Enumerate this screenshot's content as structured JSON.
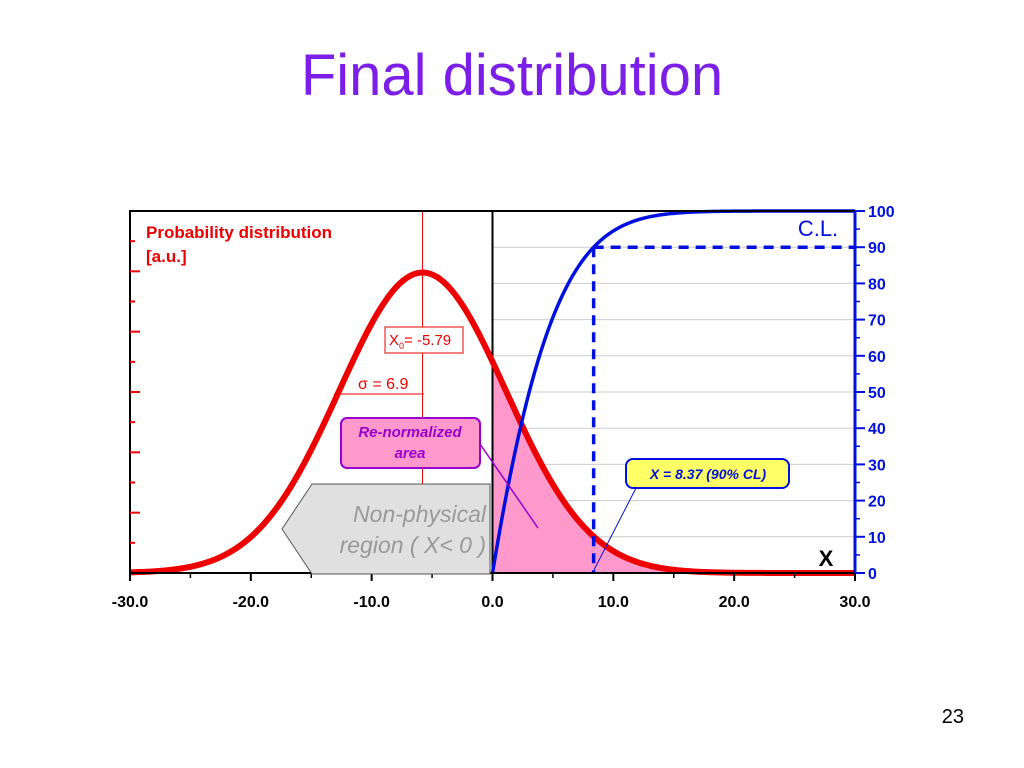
{
  "slide": {
    "title": "Final distribution",
    "page_number": "23"
  },
  "colors": {
    "title": "#7b1fe8",
    "pdf": "#ee0000",
    "cl": "#0011dd",
    "renorm_fill": "#ff99cc",
    "annotation_purple": "#9900cc",
    "nonphys_fill": "#e0e0e0",
    "nonphys_text": "#999999",
    "callout_fill": "#ffff66"
  },
  "chart_data": {
    "type": "line",
    "title": "Final distribution",
    "x": {
      "min": -30,
      "max": 30,
      "tick_labels": [
        "-30.0",
        "-20.0",
        "-10.0",
        "0.0",
        "10.0",
        "20.0",
        "30.0"
      ],
      "label": "X"
    },
    "y_left": {
      "label_line1": "Probability distribution",
      "label_line2": "[a.u.]"
    },
    "y_right": {
      "label": "C.L.",
      "min": 0,
      "max": 100,
      "tick_labels": [
        "0",
        "10",
        "20",
        "30",
        "40",
        "50",
        "60",
        "70",
        "80",
        "90",
        "100"
      ]
    },
    "gaussian": {
      "mean": -5.79,
      "sigma": 6.9,
      "peak_au": 83
    },
    "cumulative": {
      "start_x": 0
    },
    "cl90": {
      "x": 8.37,
      "cl": 90
    },
    "annotations": {
      "mean_label": "X",
      "mean_subscript": "0",
      "mean_value": "= -5.79",
      "sigma_label": "σ = 6.9",
      "renorm_line1": "Re-normalized",
      "renorm_line2": "area",
      "nonphys_line1": "Non-physical",
      "nonphys_line2": "region ( X< 0 )",
      "cl_callout": "X = 8.37 (90% CL)"
    },
    "grid": "horizontal",
    "legend": "none"
  }
}
